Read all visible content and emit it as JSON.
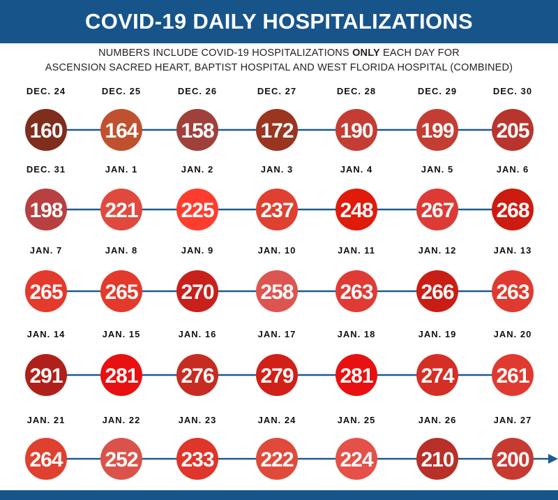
{
  "header": {
    "title": "COVID-19 DAILY HOSPITALIZATIONS"
  },
  "subtitle": {
    "line1_pre": "NUMBERS INCLUDE COVID-19 HOSPITALIZATIONS ",
    "line1_bold": "ONLY",
    "line1_post": " EACH DAY FOR",
    "line2": "ASCENSION SACRED HEART, BAPTIST HOSPITAL AND WEST FLORIDA HOSPITAL (COMBINED)"
  },
  "colors": {
    "brand": "#17548a",
    "line": "#1f5a8f"
  },
  "chart_data": {
    "type": "timeline",
    "title": "COVID-19 DAILY HOSPITALIZATIONS",
    "categories": [
      "DEC. 24",
      "DEC. 25",
      "DEC. 26",
      "DEC. 27",
      "DEC. 28",
      "DEC. 29",
      "DEC. 30",
      "DEC. 31",
      "JAN. 1",
      "JAN. 2",
      "JAN. 3",
      "JAN. 4",
      "JAN. 5",
      "JAN. 6",
      "JAN. 7",
      "JAN. 8",
      "JAN. 9",
      "JAN. 10",
      "JAN. 11",
      "JAN. 12",
      "JAN. 13",
      "JAN. 14",
      "JAN. 15",
      "JAN. 16",
      "JAN. 17",
      "JAN. 18",
      "JAN. 19",
      "JAN. 20",
      "JAN. 21",
      "JAN. 22",
      "JAN. 23",
      "JAN. 24",
      "JAN. 25",
      "JAN. 26",
      "JAN. 27"
    ],
    "values": [
      160,
      164,
      158,
      172,
      190,
      199,
      205,
      198,
      221,
      225,
      237,
      248,
      267,
      268,
      265,
      265,
      270,
      258,
      263,
      266,
      263,
      291,
      281,
      276,
      279,
      281,
      274,
      261,
      264,
      252,
      233,
      222,
      224,
      210,
      200
    ],
    "colors": [
      "#7f2d1c",
      "#c0512e",
      "#a0403a",
      "#9a3520",
      "#c43d33",
      "#c43d33",
      "#b8352d",
      "#b84040",
      "#e04a3e",
      "#ff3d2e",
      "#e0402f",
      "#e01b0a",
      "#dd3a35",
      "#cc1b10",
      "#e33a2c",
      "#e33a2c",
      "#c8201a",
      "#dd5550",
      "#e03a35",
      "#c81e14",
      "#e03a30",
      "#b0201a",
      "#e81010",
      "#c62c22",
      "#d02018",
      "#e81010",
      "#d52f25",
      "#e03a30",
      "#e0402f",
      "#d9534a",
      "#e0352a",
      "#e04a3a",
      "#e55048",
      "#b83028",
      "#c63a32"
    ]
  }
}
